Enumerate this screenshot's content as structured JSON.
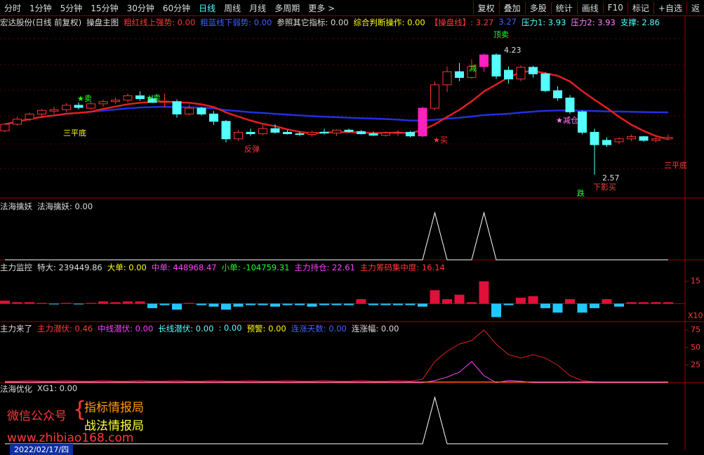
{
  "toolbar": {
    "periods": [
      "分时",
      "1分钟",
      "5分钟",
      "15分钟",
      "30分钟",
      "60分钟",
      "日线",
      "周线",
      "月线",
      "多周期",
      "更多 >"
    ],
    "active": 6,
    "tools": [
      "复权",
      "叠加",
      "多股",
      "统计",
      "画线",
      "F10",
      "标记",
      "+自选",
      "返"
    ]
  },
  "main": {
    "stock": "宏达股份(日线 前复权)",
    "indicator": "操盘主图",
    "legend": [
      {
        "text": "粗红线上强势: 0.00",
        "color": "#ff3838"
      },
      {
        "text": "粗蓝线下弱势: 0.00",
        "color": "#4060ff"
      },
      {
        "text": "参照其它指标: 0.00",
        "color": "#dddddd"
      },
      {
        "text": "综合判断操作: 0.00",
        "color": "#ffff00"
      },
      {
        "text": "【操盘线】: 3.27",
        "color": "#ff3838"
      },
      {
        "text": "3.27",
        "color": "#4060ff"
      },
      {
        "text": "压力1: 3.93",
        "color": "#54ffff"
      },
      {
        "text": "压力2: 3.93",
        "color": "#ff80ff"
      },
      {
        "text": "支撑: 2.86",
        "color": "#54ffff"
      }
    ],
    "annotations": [
      {
        "text": "★卖",
        "color": "#20ff20"
      },
      {
        "text": "三平底",
        "color": "#ffff00"
      },
      {
        "text": "★卖",
        "color": "#20ff20"
      },
      {
        "text": "反弹",
        "color": "#ff3838"
      },
      {
        "text": "★买",
        "color": "#ff3838"
      },
      {
        "text": "顶卖",
        "color": "#20ff20"
      },
      {
        "text": "4.23",
        "color": "#dddddd"
      },
      {
        "text": "减",
        "color": "#20ff20"
      },
      {
        "text": "★减仓",
        "color": "#ff80ff"
      },
      {
        "text": "2.57",
        "color": "#dddddd"
      },
      {
        "text": "下影买",
        "color": "#ff3838"
      },
      {
        "text": "跌",
        "color": "#20ff20"
      },
      {
        "text": "三平底",
        "color": "#ff3838"
      }
    ],
    "ylim": [
      2.25,
      4.75
    ],
    "limit_up": [
      34,
      39
    ],
    "candles": [
      [
        3.17,
        3.27,
        3.15,
        3.26
      ],
      [
        3.26,
        3.36,
        3.24,
        3.33
      ],
      [
        3.33,
        3.42,
        3.3,
        3.4
      ],
      [
        3.4,
        3.47,
        3.36,
        3.45
      ],
      [
        3.44,
        3.5,
        3.4,
        3.46
      ],
      [
        3.46,
        3.55,
        3.43,
        3.52
      ],
      [
        3.52,
        3.56,
        3.46,
        3.49
      ],
      [
        3.48,
        3.56,
        3.46,
        3.54
      ],
      [
        3.54,
        3.6,
        3.5,
        3.57
      ],
      [
        3.57,
        3.63,
        3.54,
        3.59
      ],
      [
        3.59,
        3.68,
        3.56,
        3.65
      ],
      [
        3.65,
        3.71,
        3.58,
        3.61
      ],
      [
        3.61,
        3.66,
        3.55,
        3.56
      ],
      [
        3.56,
        3.68,
        3.49,
        3.57
      ],
      [
        3.57,
        3.6,
        3.35,
        3.4
      ],
      [
        3.4,
        3.53,
        3.38,
        3.48
      ],
      [
        3.48,
        3.5,
        3.38,
        3.4
      ],
      [
        3.4,
        3.44,
        3.25,
        3.3
      ],
      [
        3.3,
        3.32,
        3.01,
        3.06
      ],
      [
        3.06,
        3.18,
        3.03,
        3.15
      ],
      [
        3.15,
        3.2,
        3.1,
        3.13
      ],
      [
        3.13,
        3.25,
        3.11,
        3.2
      ],
      [
        3.2,
        3.26,
        3.13,
        3.15
      ],
      [
        3.15,
        3.18,
        3.12,
        3.13
      ],
      [
        3.13,
        3.16,
        3.1,
        3.12
      ],
      [
        3.12,
        3.17,
        3.09,
        3.15
      ],
      [
        3.15,
        3.2,
        3.12,
        3.14
      ],
      [
        3.14,
        3.19,
        3.1,
        3.18
      ],
      [
        3.18,
        3.2,
        3.14,
        3.16
      ],
      [
        3.16,
        3.18,
        3.12,
        3.13
      ],
      [
        3.13,
        3.16,
        3.1,
        3.11
      ],
      [
        3.11,
        3.16,
        3.09,
        3.14
      ],
      [
        3.14,
        3.18,
        3.1,
        3.15
      ],
      [
        3.15,
        3.17,
        3.08,
        3.1
      ],
      [
        3.1,
        3.5,
        3.08,
        3.48
      ],
      [
        3.48,
        3.85,
        3.45,
        3.8
      ],
      [
        3.8,
        4.05,
        3.7,
        3.98
      ],
      [
        3.98,
        4.1,
        3.85,
        3.9
      ],
      [
        3.9,
        4.15,
        3.88,
        4.05
      ],
      [
        4.05,
        4.23,
        3.98,
        4.21
      ],
      [
        4.21,
        4.23,
        3.88,
        3.92
      ],
      [
        4.0,
        4.05,
        3.82,
        3.88
      ],
      [
        3.88,
        4.07,
        3.85,
        4.04
      ],
      [
        4.04,
        4.06,
        3.9,
        3.95
      ],
      [
        3.95,
        3.97,
        3.7,
        3.72
      ],
      [
        3.72,
        3.78,
        3.58,
        3.62
      ],
      [
        3.62,
        3.66,
        3.4,
        3.43
      ],
      [
        3.43,
        3.45,
        3.12,
        3.15
      ],
      [
        3.15,
        3.2,
        2.57,
        2.98
      ],
      [
        3.04,
        3.08,
        2.95,
        2.98
      ],
      [
        3.02,
        3.08,
        2.99,
        3.06
      ],
      [
        3.06,
        3.12,
        3.03,
        3.09
      ],
      [
        3.09,
        3.1,
        3.02,
        3.04
      ],
      [
        3.04,
        3.08,
        3.01,
        3.06
      ],
      [
        3.06,
        3.12,
        3.04,
        3.08
      ]
    ]
  },
  "signal1": {
    "name": "法海擒妖",
    "text": "法海擒妖: 0.00",
    "values": [
      0,
      0,
      0,
      0,
      0,
      0,
      0,
      0,
      0,
      0,
      0,
      0,
      0,
      0,
      0,
      0,
      0,
      0,
      0,
      0,
      0,
      0,
      0,
      0,
      0,
      0,
      0,
      0,
      0,
      0,
      0,
      0,
      0,
      0,
      0,
      1,
      0,
      0,
      0,
      1,
      0,
      0,
      0,
      0,
      0,
      0,
      0,
      0,
      0,
      0,
      0,
      0,
      0,
      0,
      0
    ]
  },
  "flow": {
    "name": "主力监控",
    "legend": [
      {
        "text": "特大: 239449.86",
        "color": "#dddddd"
      },
      {
        "text": "大单: 0.00",
        "color": "#ffff00"
      },
      {
        "text": "中单: 448968.47",
        "color": "#ff40ff"
      },
      {
        "text": "小单: -104759.31",
        "color": "#20ff20"
      },
      {
        "text": "主力持仓: 22.61",
        "color": "#ff40ff"
      },
      {
        "text": "主力筹码集中度: 16.14",
        "color": "#ff3838"
      }
    ],
    "ylim": [
      -12,
      27
    ],
    "yticks": [
      15
    ],
    "unit": "X10",
    "values": [
      2,
      1,
      1,
      0.5,
      -0.5,
      0.5,
      -0.5,
      0.5,
      1.5,
      1,
      1.5,
      1.5,
      -3,
      -1,
      -4,
      0.5,
      -1,
      -2,
      -4,
      -2,
      -1,
      -1,
      -2,
      -1,
      -1,
      -2,
      -1,
      -1,
      -1,
      3,
      -1,
      -1,
      -1,
      -1,
      -2,
      9,
      3,
      6,
      1,
      15,
      -9,
      -1,
      4,
      5,
      -3,
      -6,
      3,
      -6,
      -3,
      3,
      -2,
      1,
      1,
      1,
      1
    ]
  },
  "latent": {
    "name": "主力来了",
    "legend": [
      {
        "text": "主力潜伏: 0.46",
        "color": "#ff3838"
      },
      {
        "text": "中线潜伏: 0.00",
        "color": "#ff40ff"
      },
      {
        "text": "长线潜伏: 0.00",
        "color": "#54ffff"
      },
      {
        "text": ": 0.00",
        "color": "#54ffff"
      },
      {
        "text": "预警: 0.00",
        "color": "#ffff00"
      },
      {
        "text": "连涨天数: 0.00",
        "color": "#4060ff"
      },
      {
        "text": "连涨幅: 0.00",
        "color": "#dddddd"
      }
    ],
    "ylim": [
      0,
      83
    ],
    "yticks": [
      25,
      50,
      75
    ],
    "series": [
      {
        "color": "#e02020",
        "values": [
          2,
          2,
          3,
          2,
          2,
          3,
          2,
          2,
          3,
          2,
          2,
          3,
          2,
          2,
          3,
          2,
          2,
          3,
          2,
          2,
          3,
          2,
          2,
          3,
          2,
          2,
          3,
          2,
          2,
          3,
          2,
          2,
          3,
          2,
          5,
          30,
          45,
          55,
          60,
          75,
          55,
          40,
          35,
          40,
          35,
          25,
          10,
          3,
          1,
          1,
          1,
          1,
          1,
          1,
          1
        ]
      },
      {
        "color": "#ff40ff",
        "values": [
          0,
          0,
          0,
          0,
          0,
          0,
          0,
          0,
          0,
          0,
          0,
          0,
          0,
          0,
          0,
          0,
          0,
          0,
          0,
          0,
          0,
          0,
          0,
          0,
          0,
          0,
          0,
          0,
          0,
          0,
          0,
          0,
          0,
          0,
          0,
          3,
          8,
          15,
          30,
          10,
          0,
          3,
          2,
          0,
          0,
          0,
          0,
          0,
          0,
          0,
          0,
          0,
          0,
          0,
          0
        ]
      },
      {
        "color": "#ff9900",
        "values": [
          1,
          1,
          1,
          1,
          1,
          1,
          1,
          1,
          1,
          1,
          1,
          1,
          1,
          1,
          1,
          1,
          1,
          1,
          1,
          1,
          1,
          1,
          1,
          1,
          1,
          1,
          1,
          1,
          1,
          1,
          1,
          1,
          1,
          1,
          1,
          1,
          1,
          1,
          1,
          1,
          1,
          1,
          1,
          1,
          1,
          1,
          1,
          1,
          1,
          1,
          1,
          1,
          1,
          1,
          1
        ]
      }
    ]
  },
  "signal2": {
    "name": "法海优化",
    "text": "XG1: 0.00",
    "values": [
      0,
      0,
      0,
      0,
      0,
      0,
      0,
      0,
      0,
      0,
      0,
      0,
      0,
      0,
      0,
      0,
      0,
      0,
      0,
      0,
      0,
      0,
      0,
      0,
      0,
      0,
      0,
      0,
      0,
      0,
      0,
      0,
      0,
      0,
      0,
      1,
      0,
      0,
      0,
      0,
      0,
      0,
      0,
      0,
      0,
      0,
      0,
      0,
      0,
      0,
      0,
      0,
      0,
      0,
      0
    ]
  },
  "watermark": {
    "account": "微信公众号",
    "names": [
      "指标情报局",
      "战法情报局"
    ],
    "site": "www.zhibiao168.com",
    "date": "2022/02/17/四"
  }
}
